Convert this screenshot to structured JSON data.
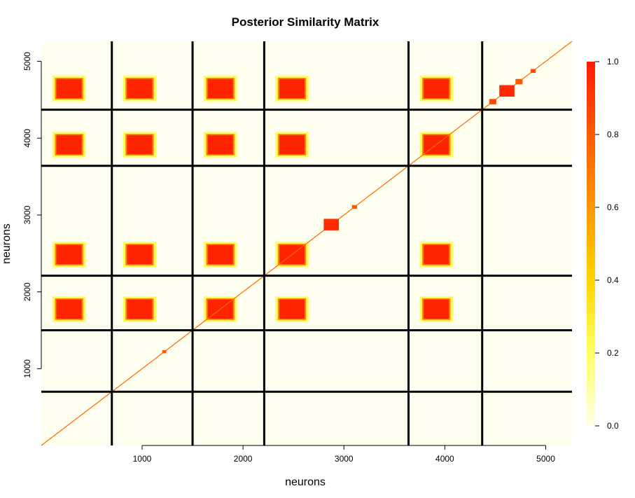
{
  "chart_data": {
    "type": "heatmap",
    "title": "Posterior Similarity Matrix",
    "xlabel": "neurons",
    "ylabel": "neurons",
    "xlim": [
      1,
      5260
    ],
    "ylim": [
      1,
      5260
    ],
    "x_ticks": [
      1000,
      2000,
      3000,
      4000,
      5000
    ],
    "y_ticks": [
      1000,
      2000,
      3000,
      4000,
      5000
    ],
    "block_boundaries": [
      700,
      1500,
      2210,
      3640,
      4370
    ],
    "color_scale": {
      "min": 0.0,
      "max": 1.0,
      "ticks": [
        0.0,
        0.2,
        0.4,
        0.6,
        0.8,
        1.0
      ],
      "tick_labels": [
        "0.0",
        "0.2",
        "0.4",
        "0.6",
        "0.8",
        "1.0"
      ],
      "colors": [
        "#ffffe6",
        "#ffff66",
        "#ffd400",
        "#ff9600",
        "#ff5a00",
        "#ff1a00"
      ]
    },
    "diagonal_clusters": [
      {
        "start": 2800,
        "end": 2950,
        "value": 0.95
      },
      {
        "start": 3080,
        "end": 3130,
        "value": 0.8
      },
      {
        "start": 1200,
        "end": 1240,
        "value": 0.8
      },
      {
        "start": 4540,
        "end": 4690,
        "value": 0.95
      },
      {
        "start": 4440,
        "end": 4510,
        "value": 0.85
      },
      {
        "start": 4700,
        "end": 4770,
        "value": 0.8
      },
      {
        "start": 4850,
        "end": 4900,
        "value": 0.85
      }
    ],
    "dense_cluster_rows": [
      {
        "start": 150,
        "end": 400,
        "value": 0.97,
        "axis": "segment-1-rows"
      }
    ]
  },
  "colors": {
    "background": "#fffff0",
    "grid": "#000000"
  }
}
